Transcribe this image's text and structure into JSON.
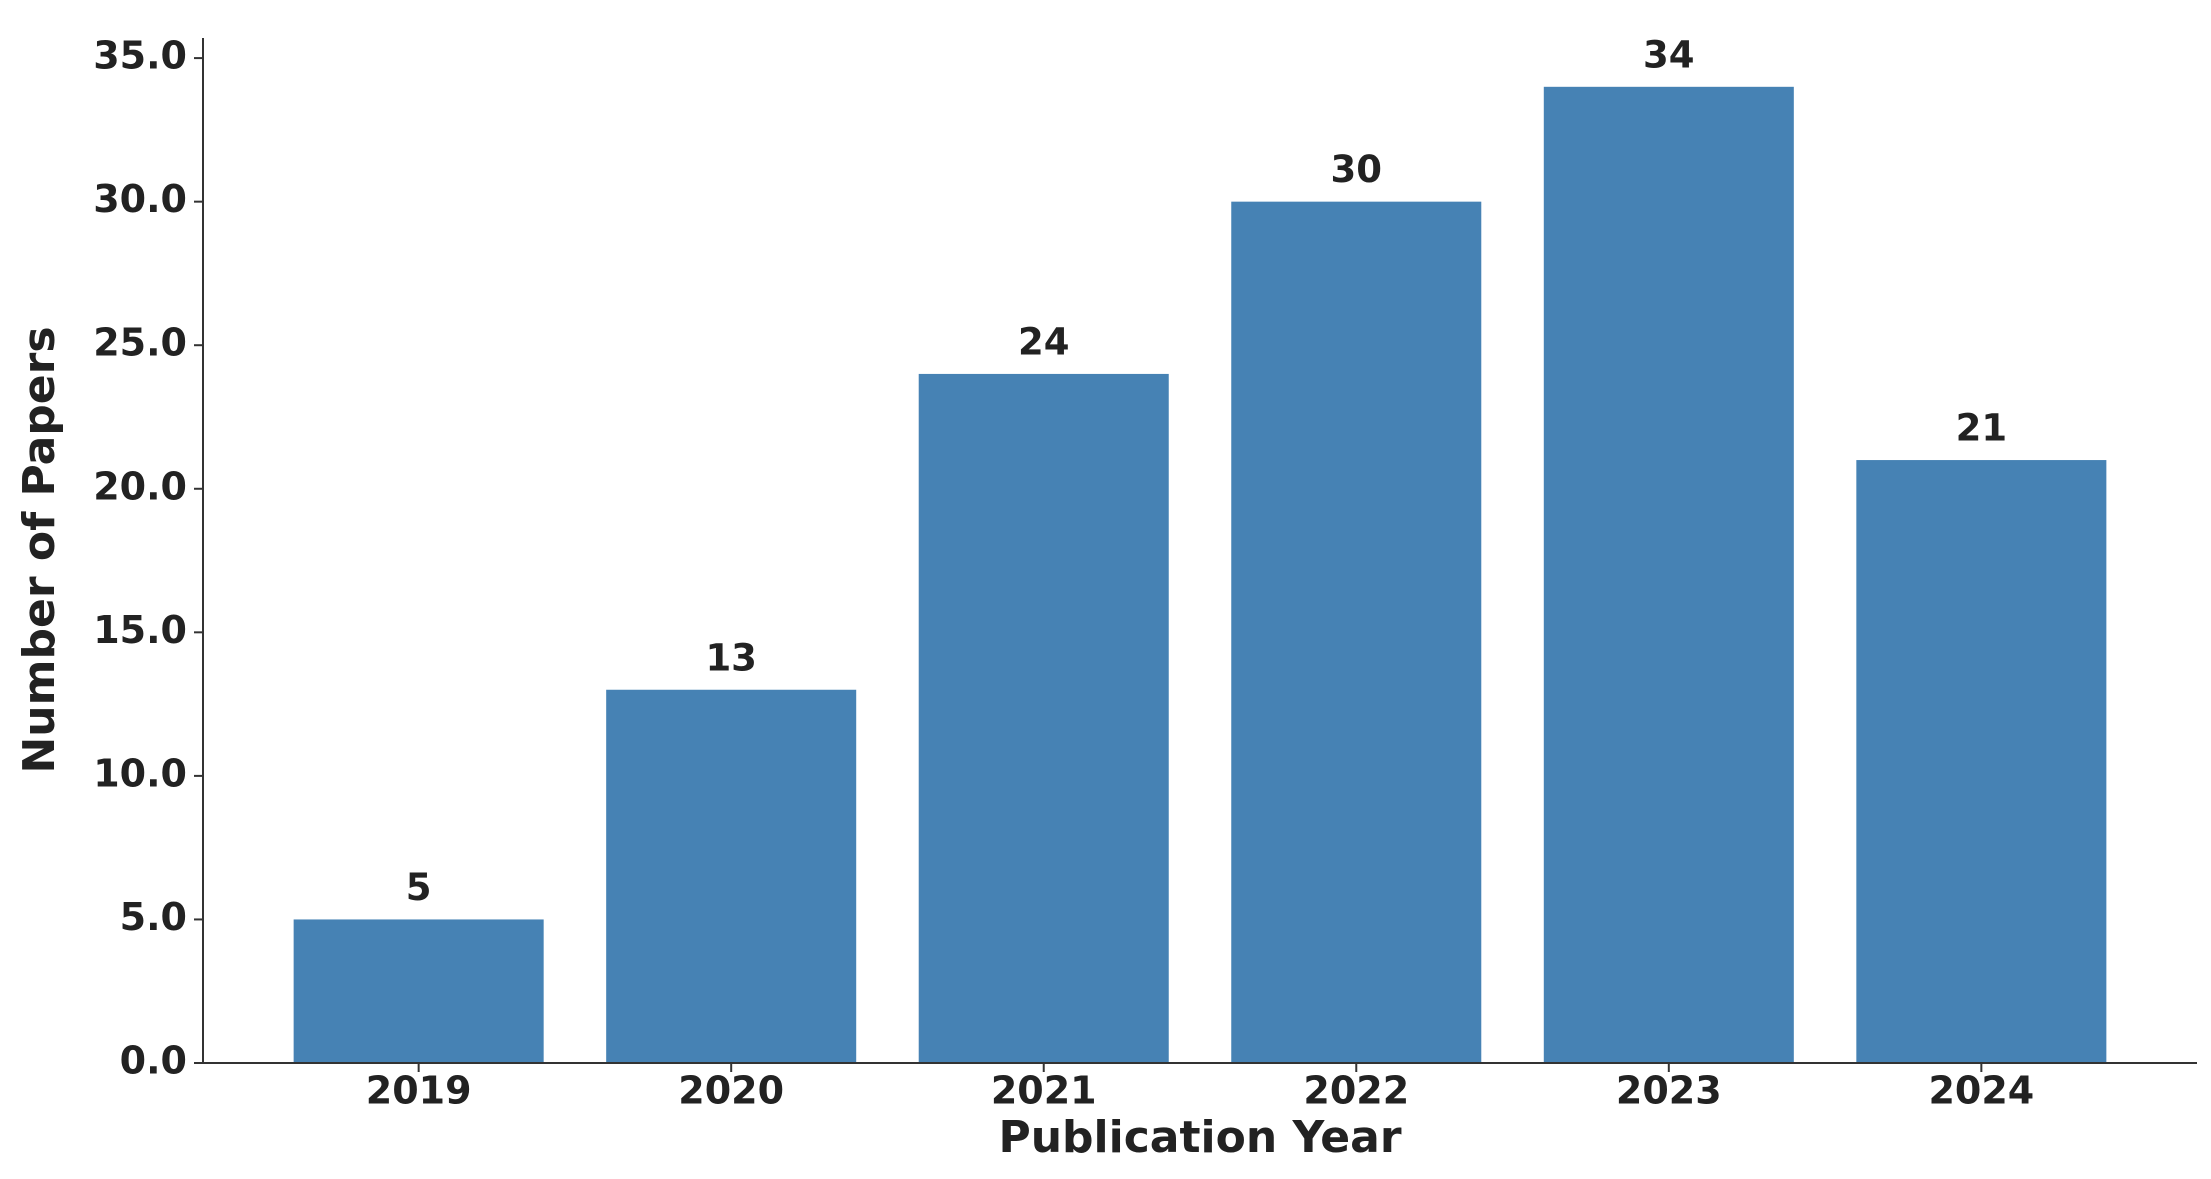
{
  "chart_data": {
    "type": "bar",
    "x_label": "Publication Year",
    "y_label": "Number of Papers",
    "categories": [
      "2019",
      "2020",
      "2021",
      "2022",
      "2023",
      "2024"
    ],
    "values": [
      5,
      13,
      24,
      30,
      34,
      21
    ],
    "color": "#4682b4",
    "ylim": [
      0,
      35.7
    ],
    "yticks": [
      {
        "value": 0,
        "label": "0.0"
      },
      {
        "value": 5,
        "label": "5.0"
      },
      {
        "value": 10,
        "label": "10.0"
      },
      {
        "value": 15,
        "label": "15.0"
      },
      {
        "value": 20,
        "label": "20.0"
      },
      {
        "value": 25,
        "label": "25.0"
      },
      {
        "value": 30,
        "label": "30.0"
      },
      {
        "value": 35,
        "label": "35.0"
      }
    ],
    "grid": false
  }
}
